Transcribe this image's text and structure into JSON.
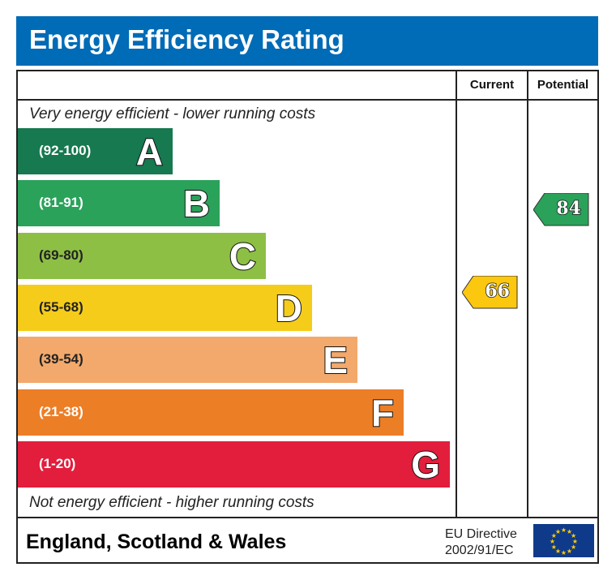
{
  "title": "Energy Efficiency Rating",
  "columns": {
    "current": "Current",
    "potential": "Potential"
  },
  "top_note": "Very energy efficient - lower running costs",
  "bottom_note": "Not energy efficient - higher running costs",
  "footer": {
    "region": "England, Scotland & Wales",
    "directive_line1": "EU Directive",
    "directive_line2": "2002/91/EC",
    "flag_icon": "eu-flag-icon"
  },
  "chart_data": {
    "type": "bar",
    "bands": [
      {
        "letter": "A",
        "range": "(92-100)",
        "color": "#16794f"
      },
      {
        "letter": "B",
        "range": "(81-91)",
        "color": "#2aa25a"
      },
      {
        "letter": "C",
        "range": "(69-80)",
        "color": "#8dbf45"
      },
      {
        "letter": "D",
        "range": "(55-68)",
        "color": "#f5cc1a"
      },
      {
        "letter": "E",
        "range": "(39-54)",
        "color": "#f2a96b"
      },
      {
        "letter": "F",
        "range": "(21-38)",
        "color": "#ec7e26"
      },
      {
        "letter": "G",
        "range": "(1-20)",
        "color": "#e31d3c"
      }
    ],
    "current": {
      "value": "66",
      "band": "D",
      "color": "#fcc70f"
    },
    "potential": {
      "value": "84",
      "band": "B",
      "color": "#2aa25a"
    }
  }
}
